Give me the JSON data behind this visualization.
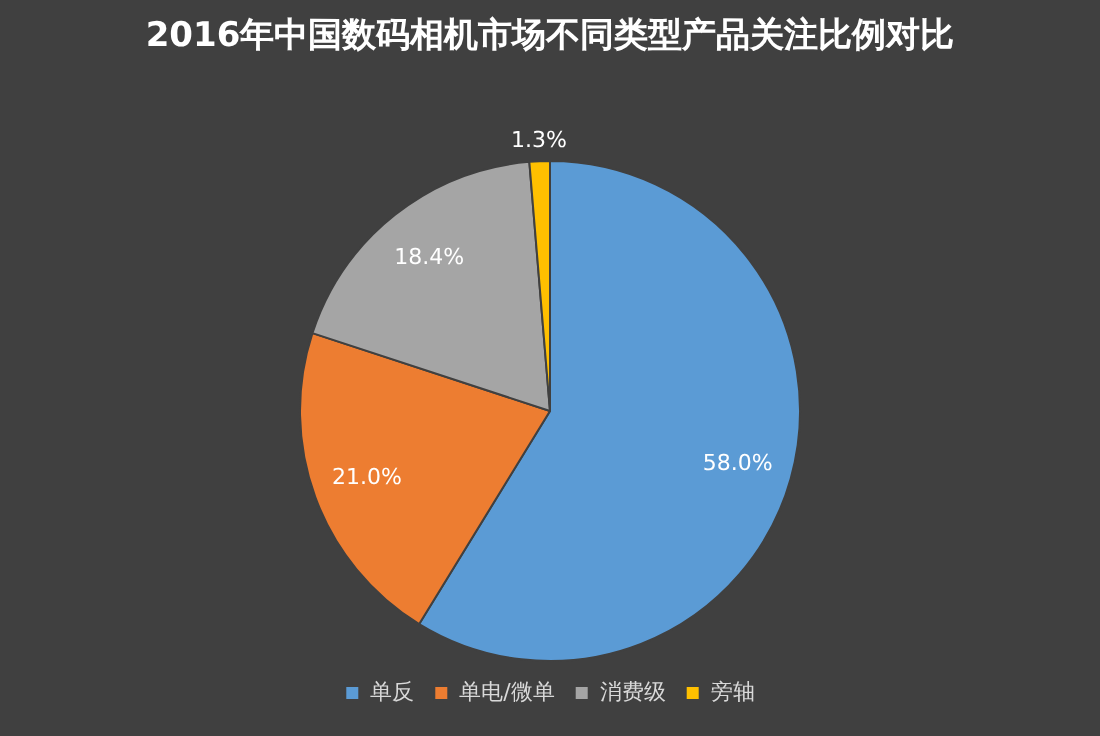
{
  "chart_data": {
    "type": "pie",
    "title": "2016年中国数码相机市场不同类型产品关注比例对比",
    "categories": [
      "单反",
      "单电/微单",
      "消费级",
      "旁轴"
    ],
    "values": [
      58.0,
      21.0,
      18.4,
      1.3
    ],
    "colors": [
      "#5b9bd5",
      "#ed7d31",
      "#a5a5a5",
      "#ffc000"
    ],
    "value_labels": [
      "58.0%",
      "21.0%",
      "18.4%",
      "1.3%"
    ],
    "legend": "bottom"
  }
}
